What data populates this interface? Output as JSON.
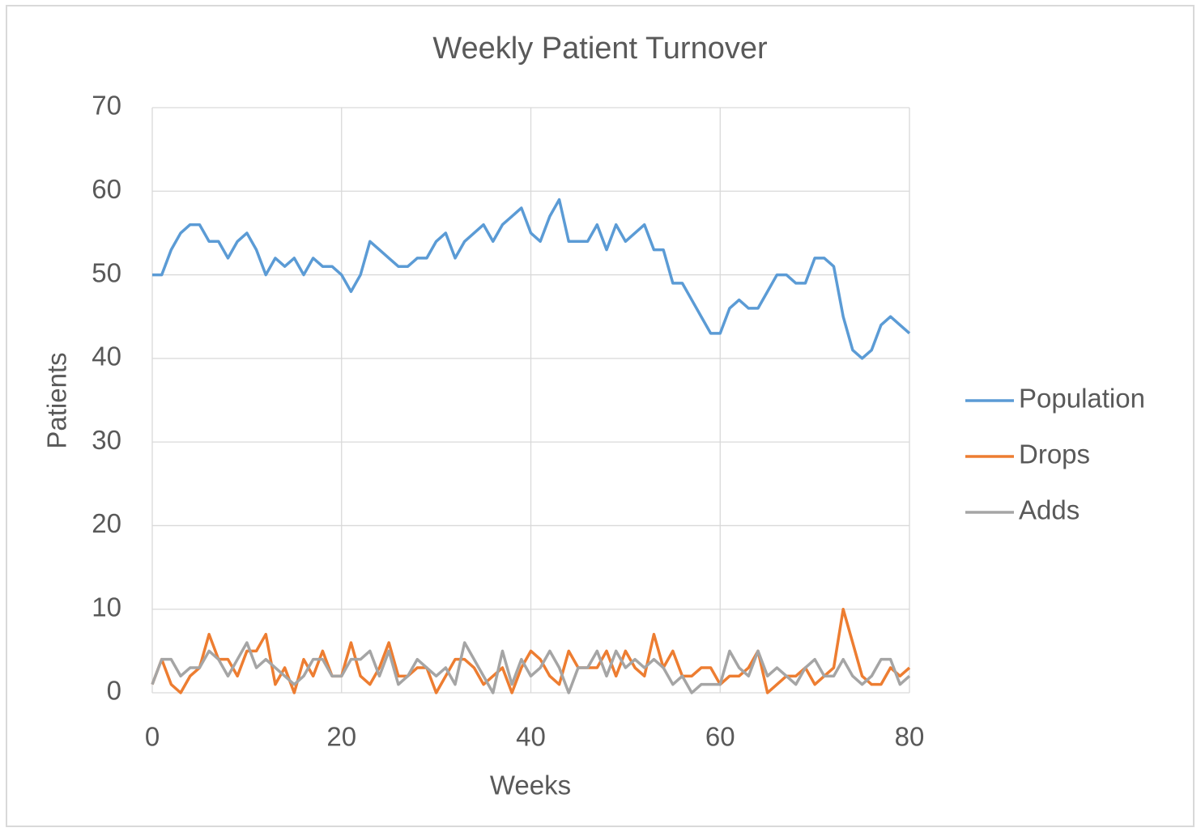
{
  "chart_data": {
    "type": "line",
    "title": "Weekly Patient Turnover",
    "xlabel": "Weeks",
    "ylabel": "Patients",
    "x": [
      0,
      1,
      2,
      3,
      4,
      5,
      6,
      7,
      8,
      9,
      10,
      11,
      12,
      13,
      14,
      15,
      16,
      17,
      18,
      19,
      20,
      21,
      22,
      23,
      24,
      25,
      26,
      27,
      28,
      29,
      30,
      31,
      32,
      33,
      34,
      35,
      36,
      37,
      38,
      39,
      40,
      41,
      42,
      43,
      44,
      45,
      46,
      47,
      48,
      49,
      50,
      51,
      52,
      53,
      54,
      55,
      56,
      57,
      58,
      59,
      60,
      61,
      62,
      63,
      64,
      65,
      66,
      67,
      68,
      69,
      70,
      71,
      72,
      73,
      74,
      75,
      76,
      77,
      78,
      79,
      80
    ],
    "series": [
      {
        "name": "Population",
        "color": "#5b9bd5",
        "values": [
          50,
          50,
          53,
          55,
          56,
          56,
          54,
          54,
          52,
          54,
          55,
          53,
          50,
          52,
          51,
          52,
          50,
          52,
          51,
          51,
          50,
          48,
          50,
          54,
          53,
          52,
          51,
          51,
          52,
          52,
          54,
          55,
          52,
          54,
          55,
          56,
          54,
          56,
          57,
          58,
          55,
          54,
          57,
          59,
          54,
          54,
          54,
          56,
          53,
          56,
          54,
          55,
          56,
          53,
          53,
          49,
          49,
          47,
          45,
          43,
          43,
          46,
          47,
          46,
          46,
          48,
          50,
          50,
          49,
          49,
          52,
          52,
          51,
          45,
          41,
          40,
          41,
          44,
          45,
          44,
          43
        ]
      },
      {
        "name": "Drops",
        "color": "#ed7d31",
        "values": [
          1,
          4,
          1,
          0,
          2,
          3,
          7,
          4,
          4,
          2,
          5,
          5,
          7,
          1,
          3,
          0,
          4,
          2,
          5,
          2,
          2,
          6,
          2,
          1,
          3,
          6,
          2,
          2,
          3,
          3,
          0,
          2,
          4,
          4,
          3,
          1,
          2,
          3,
          0,
          3,
          5,
          4,
          2,
          1,
          5,
          3,
          3,
          3,
          5,
          2,
          5,
          3,
          2,
          7,
          3,
          5,
          2,
          2,
          3,
          3,
          1,
          2,
          2,
          3,
          5,
          0,
          1,
          2,
          2,
          3,
          1,
          2,
          3,
          10,
          6,
          2,
          1,
          1,
          3,
          2,
          3
        ]
      },
      {
        "name": "Adds",
        "color": "#a5a5a5",
        "values": [
          1,
          4,
          4,
          2,
          3,
          3,
          5,
          4,
          2,
          4,
          6,
          3,
          4,
          3,
          2,
          1,
          2,
          4,
          4,
          2,
          2,
          4,
          4,
          5,
          2,
          5,
          1,
          2,
          4,
          3,
          2,
          3,
          1,
          6,
          4,
          2,
          0,
          5,
          1,
          4,
          2,
          3,
          5,
          3,
          0,
          3,
          3,
          5,
          2,
          5,
          3,
          4,
          3,
          4,
          3,
          1,
          2,
          0,
          1,
          1,
          1,
          5,
          3,
          2,
          5,
          2,
          3,
          2,
          1,
          3,
          4,
          2,
          2,
          4,
          2,
          1,
          2,
          4,
          4,
          1,
          2
        ]
      }
    ],
    "xlim": [
      0,
      80
    ],
    "xticks": [
      0,
      20,
      40,
      60,
      80
    ],
    "ylim": [
      0,
      70
    ],
    "yticks": [
      0,
      10,
      20,
      30,
      40,
      50,
      60,
      70
    ],
    "grid": true,
    "legend": "right"
  }
}
